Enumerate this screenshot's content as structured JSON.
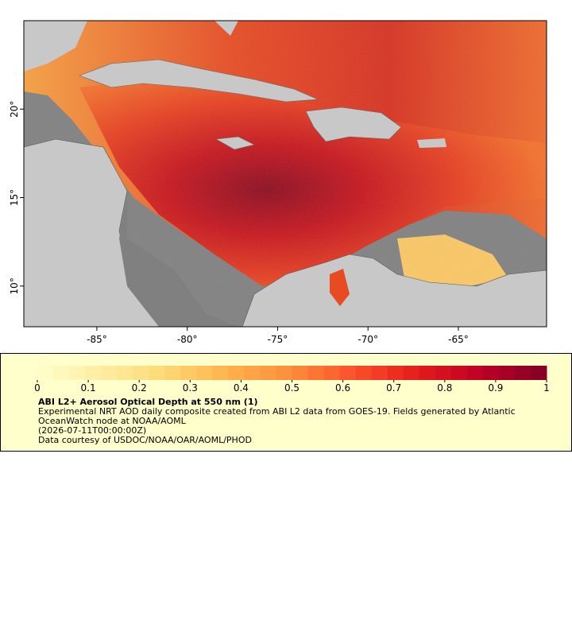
{
  "map": {
    "xlim": [
      -89.04,
      -60.12
    ],
    "ylim": [
      7.7,
      25
    ],
    "xticks": [
      {
        "value": -85,
        "label": "-85°"
      },
      {
        "value": -80,
        "label": "-80°"
      },
      {
        "value": -75,
        "label": "-75°"
      },
      {
        "value": -70,
        "label": "-70°"
      },
      {
        "value": -65,
        "label": "-65°"
      }
    ],
    "yticks": [
      {
        "value": 10,
        "label": "10°"
      },
      {
        "value": 15,
        "label": "15°"
      },
      {
        "value": 20,
        "label": "20°"
      }
    ]
  },
  "colorbar": {
    "lim": [
      0,
      1
    ],
    "ticks": [
      0,
      0.1,
      0.2,
      0.3,
      0.4,
      0.5,
      0.6,
      0.7,
      0.8,
      0.9,
      1
    ]
  },
  "legend": {
    "title": "ABI L2+ Aerosol Optical Depth at 550 nm (1)",
    "description": "Experimental NRT AOD daily composite created from ABI L2 data from GOES-19. Fields generated by Atlantic OceanWatch node at NOAA/AOML",
    "time": "(2026-07-11T00:00:00Z)",
    "credit": "Data courtesy of USDOC/NOAA/OAR/AOML/PHOD"
  }
}
